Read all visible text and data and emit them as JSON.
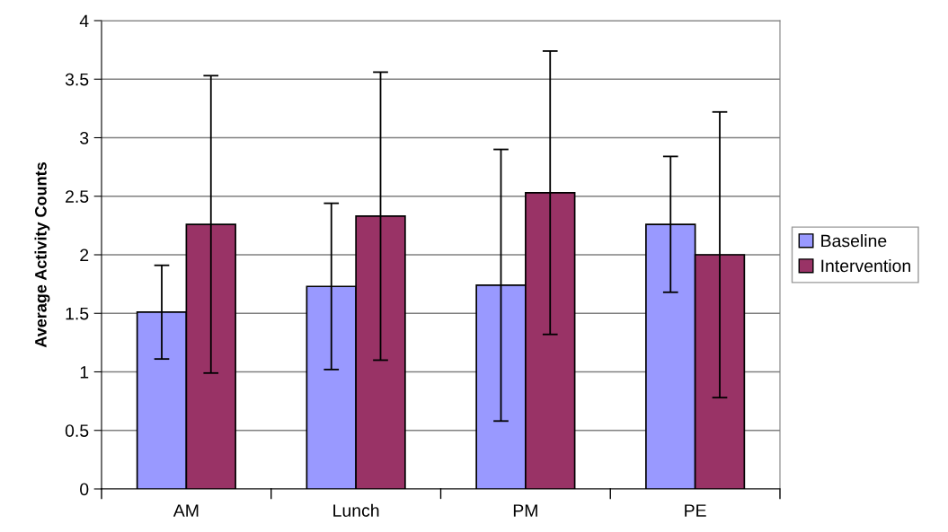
{
  "chart_data": {
    "type": "bar",
    "ylabel": "Average Activity Counts",
    "categories": [
      "AM",
      "Lunch",
      "PM",
      "PE"
    ],
    "series": [
      {
        "name": "Baseline",
        "color": "#9999ff",
        "values": [
          1.51,
          1.73,
          1.74,
          2.26
        ],
        "errors": [
          0.4,
          0.71,
          1.16,
          0.58
        ]
      },
      {
        "name": "Intervention",
        "color": "#993366",
        "values": [
          2.26,
          2.33,
          2.53,
          2.0
        ],
        "errors": [
          1.27,
          1.23,
          1.21,
          1.22
        ]
      }
    ],
    "ylim": [
      0,
      4
    ],
    "yticks": [
      0,
      0.5,
      1,
      1.5,
      2,
      2.5,
      3,
      3.5,
      4
    ],
    "grid": "y",
    "legend": "right"
  }
}
